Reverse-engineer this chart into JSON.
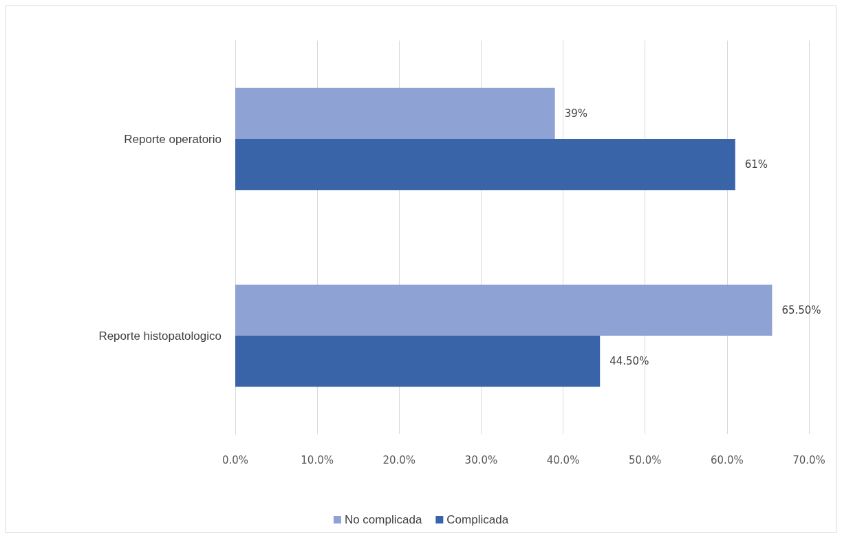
{
  "chart_data": {
    "type": "bar",
    "orientation": "horizontal",
    "categories": [
      "Reporte operatorio",
      "Reporte histopatologico"
    ],
    "series": [
      {
        "name": "No complicada",
        "color": "#8fa2d4",
        "values": [
          39,
          65.5
        ],
        "value_labels": [
          "39%",
          "65.50%"
        ]
      },
      {
        "name": "Complicada",
        "color": "#3a64a8",
        "values": [
          61,
          44.5
        ],
        "value_labels": [
          "61%",
          "44.50%"
        ]
      }
    ],
    "xlim": [
      0,
      70
    ],
    "xticks": [
      {
        "value": 0,
        "label": "0.0%"
      },
      {
        "value": 10,
        "label": "10.0%"
      },
      {
        "value": 20,
        "label": "20.0%"
      },
      {
        "value": 30,
        "label": "30.0%"
      },
      {
        "value": 40,
        "label": "40.0%"
      },
      {
        "value": 50,
        "label": "50.0%"
      },
      {
        "value": 60,
        "label": "60.0%"
      },
      {
        "value": 70,
        "label": "70.0%"
      }
    ],
    "grid": "x",
    "legend": "bottom"
  }
}
